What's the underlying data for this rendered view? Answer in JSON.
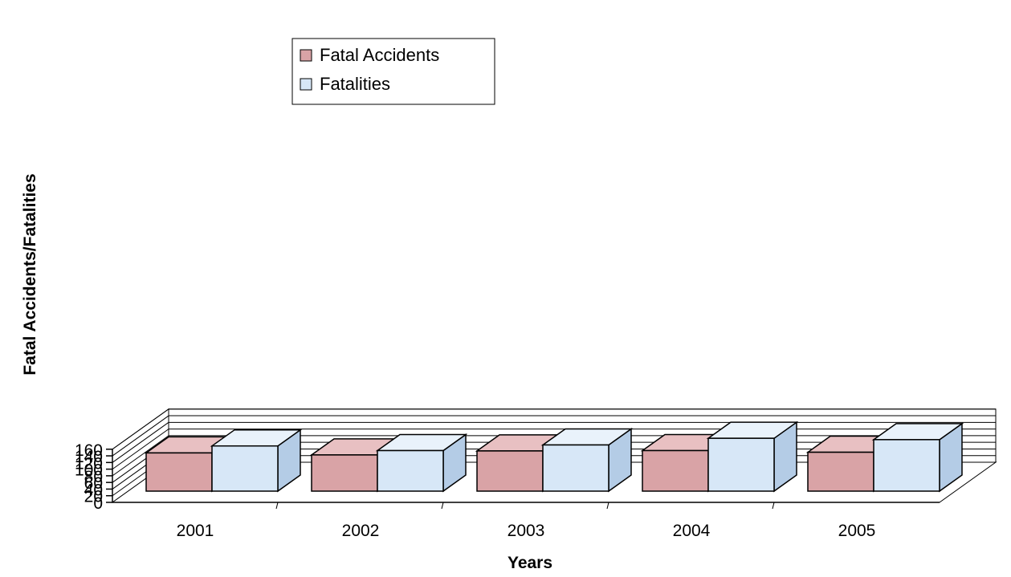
{
  "chart_data": {
    "type": "bar",
    "style": "3d-clustered-column",
    "categories": [
      "2001",
      "2002",
      "2003",
      "2004",
      "2005"
    ],
    "series": [
      {
        "name": "Fatal Accidents",
        "values": [
          115,
          109,
          121,
          122,
          117
        ],
        "color": "#d9a3a6",
        "side_color": "#b97c80",
        "top_color": "#e8c0c2"
      },
      {
        "name": "Fatalities",
        "values": [
          136,
          122,
          139,
          159,
          155
        ],
        "color": "#d7e7f7",
        "side_color": "#b4cce6",
        "top_color": "#e9f2fb"
      }
    ],
    "xlabel": "Years",
    "ylabel": "Fatal Accidents/Fatalities",
    "ylim": [
      0,
      160
    ],
    "yticks": [
      "0",
      "20",
      "40",
      "60",
      "80",
      "100",
      "120",
      "140",
      "160"
    ],
    "grid": true,
    "legend_position": "top-left"
  }
}
